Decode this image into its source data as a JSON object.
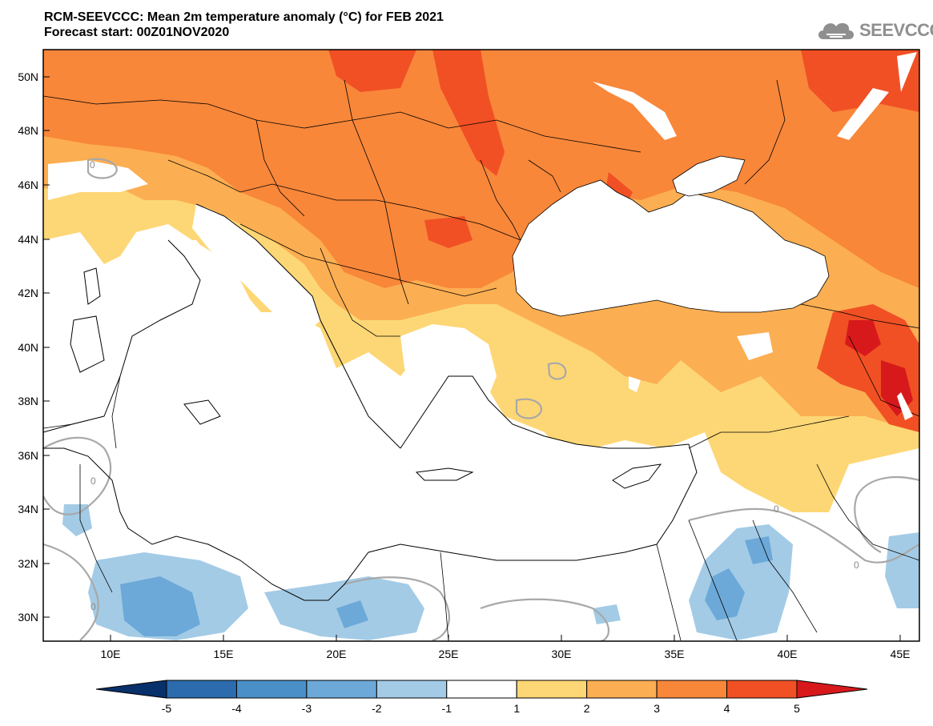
{
  "title": {
    "line1": "RCM-SEEVCCC: Mean 2m temperature anomaly (°C) for FEB 2021",
    "line2": "Forecast start: 00Z01NOV2020"
  },
  "logo": {
    "text": "SEEVCCC",
    "icon": "cloud-icon"
  },
  "map": {
    "lat_labels": [
      "50N",
      "48N",
      "46N",
      "44N",
      "42N",
      "40N",
      "38N",
      "36N",
      "34N",
      "32N",
      "30N"
    ],
    "lon_labels": [
      "10E",
      "15E",
      "20E",
      "25E",
      "30E",
      "35E",
      "40E",
      "45E"
    ],
    "contour_labels": [
      "0",
      "0",
      "0",
      "0",
      "0"
    ]
  },
  "colorbar": {
    "labels": [
      "-5",
      "-4",
      "-3",
      "-2",
      "-1",
      "1",
      "2",
      "3",
      "4",
      "5"
    ],
    "colors": [
      "#08306b",
      "#2c6cae",
      "#4a8fc8",
      "#6ca9d8",
      "#a3cbe6",
      "#ffffff",
      "#fdd775",
      "#fcae52",
      "#f8873a",
      "#f15024",
      "#d7191c"
    ]
  }
}
